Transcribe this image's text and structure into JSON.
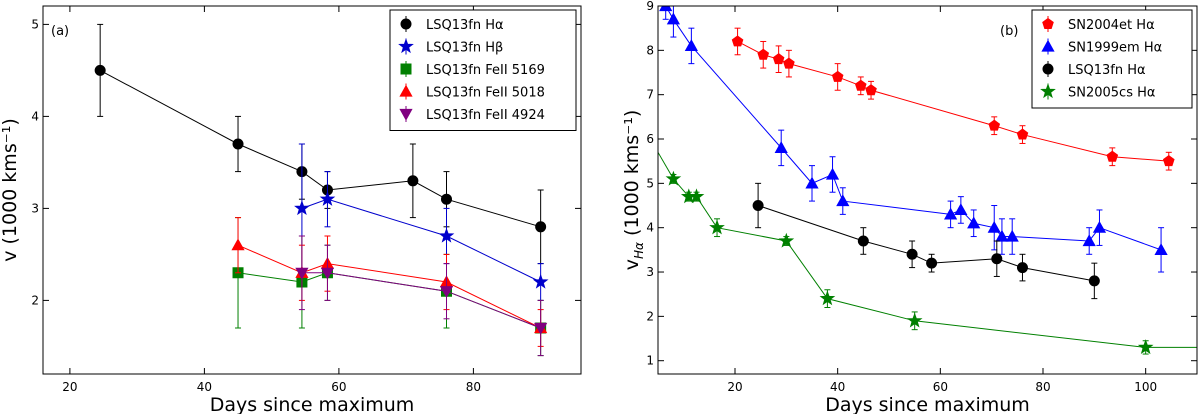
{
  "chart_data": [
    {
      "type": "line",
      "panel_label": "(a)",
      "xlabel": "Days since maximum",
      "ylabel": "v (1000 kms⁻¹)",
      "xlim": [
        16,
        96
      ],
      "ylim": [
        1.2,
        5.2
      ],
      "xticks": [
        20,
        40,
        60,
        80
      ],
      "yticks": [
        2,
        3,
        4,
        5
      ],
      "legend_position": "top-right",
      "series": [
        {
          "name": "LSQ13fn Hα",
          "color": "#000000",
          "marker": "circle",
          "line": true,
          "x": [
            24.5,
            45,
            54.5,
            58.3,
            71,
            76,
            90
          ],
          "y": [
            4.5,
            3.7,
            3.4,
            3.2,
            3.3,
            3.1,
            2.8
          ],
          "err": [
            0.5,
            0.3,
            0.3,
            0.2,
            0.4,
            0.3,
            0.4
          ]
        },
        {
          "name": "LSQ13fn Hβ",
          "color": "#0000cc",
          "marker": "star",
          "line": true,
          "x": [
            54.5,
            58.3,
            76,
            90
          ],
          "y": [
            3.0,
            3.1,
            2.7,
            2.2
          ],
          "err": [
            0.7,
            0.3,
            0.3,
            0.2
          ]
        },
        {
          "name": "LSQ13fn FeII 5169",
          "color": "#008000",
          "marker": "square",
          "line": true,
          "x": [
            45,
            54.5,
            58.3,
            76,
            90
          ],
          "y": [
            2.3,
            2.2,
            2.3,
            2.1,
            1.7
          ],
          "err": [
            0.6,
            0.5,
            0.3,
            0.4,
            0.3
          ]
        },
        {
          "name": "LSQ13fn FeII 5018",
          "color": "#ff0000",
          "marker": "triangle-up",
          "line": true,
          "x": [
            45,
            54.5,
            58.3,
            76,
            90
          ],
          "y": [
            2.6,
            2.3,
            2.4,
            2.2,
            1.7
          ],
          "err": [
            0.3,
            0.3,
            0.3,
            0.3,
            0.2
          ]
        },
        {
          "name": "LSQ13fn FeII 4924",
          "color": "#800080",
          "marker": "triangle-down",
          "line": true,
          "x": [
            54.5,
            58.3,
            76,
            90
          ],
          "y": [
            2.3,
            2.3,
            2.1,
            1.7
          ],
          "err": [
            0.4,
            0.3,
            0.3,
            0.3
          ]
        }
      ]
    },
    {
      "type": "line",
      "panel_label": "(b)",
      "xlabel": "Days since maximum",
      "ylabel": "vHα (1000 kms⁻¹)",
      "ylabel_main": "v",
      "ylabel_sub": "Hα",
      "ylabel_rest": " (1000 kms⁻¹)",
      "xlim": [
        5,
        110
      ],
      "ylim": [
        0.7,
        9
      ],
      "xticks": [
        20,
        40,
        60,
        80,
        100
      ],
      "yticks": [
        1,
        2,
        3,
        4,
        5,
        6,
        7,
        8,
        9
      ],
      "legend_position": "top-right",
      "series": [
        {
          "name": "SN2004et Hα",
          "color": "#ff0000",
          "marker": "pentagon",
          "line": true,
          "x": [
            20.5,
            25.5,
            28.5,
            30.5,
            40,
            44.5,
            46.5,
            70.5,
            76,
            93.5,
            104.5
          ],
          "y": [
            8.2,
            7.9,
            7.8,
            7.7,
            7.4,
            7.2,
            7.1,
            6.3,
            6.1,
            5.6,
            5.5
          ],
          "err": [
            0.3,
            0.3,
            0.3,
            0.3,
            0.3,
            0.2,
            0.2,
            0.2,
            0.2,
            0.2,
            0.2
          ]
        },
        {
          "name": "SN1999em Hα",
          "color": "#0000ff",
          "marker": "triangle-up",
          "line": true,
          "x": [
            6.5,
            8,
            11.5,
            29,
            35,
            39,
            41,
            62,
            64,
            66.5,
            70.5,
            72,
            74,
            89,
            91,
            103
          ],
          "y": [
            9.0,
            8.7,
            8.1,
            5.8,
            5.0,
            5.2,
            4.6,
            4.3,
            4.4,
            4.1,
            4.0,
            3.8,
            3.8,
            3.7,
            4.0,
            3.5
          ],
          "err": [
            0.3,
            0.4,
            0.4,
            0.4,
            0.4,
            0.4,
            0.3,
            0.3,
            0.3,
            0.3,
            0.5,
            0.4,
            0.4,
            0.3,
            0.4,
            0.5
          ]
        },
        {
          "name": "LSQ13fn Hα",
          "color": "#000000",
          "marker": "circle",
          "line": true,
          "x": [
            24.5,
            45,
            54.5,
            58.3,
            71,
            76,
            90
          ],
          "y": [
            4.5,
            3.7,
            3.4,
            3.2,
            3.3,
            3.1,
            2.8
          ],
          "err": [
            0.5,
            0.3,
            0.3,
            0.2,
            0.4,
            0.3,
            0.4
          ]
        },
        {
          "name": "SN2005cs Hα",
          "color": "#008000",
          "marker": "star",
          "line": true,
          "x": [
            8,
            11,
            12.5,
            16.5,
            30,
            38,
            55,
            100
          ],
          "y": [
            5.1,
            4.7,
            4.7,
            4.0,
            3.7,
            2.4,
            1.9,
            1.3
          ],
          "err": [
            0.1,
            0.1,
            0.1,
            0.2,
            0.1,
            0.2,
            0.2,
            0.15
          ]
        }
      ],
      "extra_line": {
        "series_index": 3,
        "x_start": 5,
        "y_start": 5.7,
        "x_end": 110,
        "y_end": 1.3
      }
    }
  ]
}
